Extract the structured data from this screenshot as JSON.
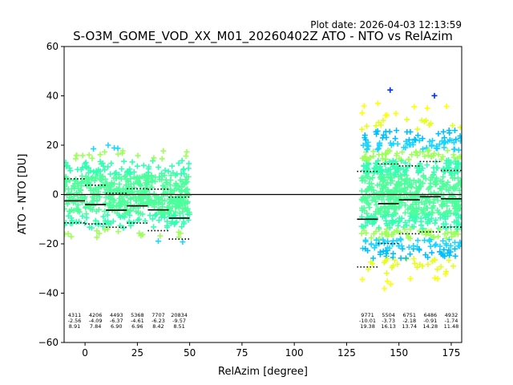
{
  "plot_date": "Plot date: 2026-04-03 12:13:59",
  "colors": {
    "axis": "#000000",
    "background": "#ffffff"
  },
  "chart_data": {
    "type": "scatter",
    "title": "S-O3M_GOME_VOD_XX_M01_20260402Z ATO - NTO vs RelAzim",
    "xlabel": "RelAzim [degree]",
    "ylabel": "ATO - NTO [DU]",
    "xlim": [
      -10,
      180
    ],
    "ylim": [
      -60,
      60
    ],
    "xticks": [
      "0",
      "25",
      "50",
      "75",
      "100",
      "125",
      "150",
      "175"
    ],
    "xtick_values": [
      0,
      25,
      50,
      75,
      100,
      125,
      150,
      175
    ],
    "yticks": [
      "−60",
      "−40",
      "−20",
      "0",
      "20",
      "40",
      "60"
    ],
    "ytick_values": [
      -60,
      -40,
      -20,
      0,
      20,
      40,
      60
    ],
    "reference_line": 0,
    "scatter_clusters": [
      {
        "x_range": [
          -10,
          50
        ],
        "y_center": 0,
        "y_spread": 26
      },
      {
        "x_range": [
          132,
          180
        ],
        "y_center": 0,
        "y_spread": 50
      }
    ],
    "bins": [
      {
        "x": -5,
        "count": "4311",
        "mean": "-2.56",
        "std": "8.91",
        "y_mean": -2.56,
        "y_std": 8.91
      },
      {
        "x": 5,
        "count": "4206",
        "mean": "-4.09",
        "std": "7.84",
        "y_mean": -4.09,
        "y_std": 7.84
      },
      {
        "x": 15,
        "count": "4493",
        "mean": "-6.37",
        "std": "6.90",
        "y_mean": -6.37,
        "y_std": 6.9
      },
      {
        "x": 25,
        "count": "5368",
        "mean": "-4.61",
        "std": "6.96",
        "y_mean": -4.61,
        "y_std": 6.96
      },
      {
        "x": 35,
        "count": "7707",
        "mean": "-6.23",
        "std": "8.42",
        "y_mean": -6.23,
        "y_std": 8.42
      },
      {
        "x": 45,
        "count": "20834",
        "mean": "-9.57",
        "std": "8.51",
        "y_mean": -9.57,
        "y_std": 8.51
      },
      {
        "x": 135,
        "count": "9771",
        "mean": "-10.01",
        "std": "19.38",
        "y_mean": -10.01,
        "y_std": 19.38
      },
      {
        "x": 145,
        "count": "5504",
        "mean": "-3.73",
        "std": "16.13",
        "y_mean": -3.73,
        "y_std": 16.13
      },
      {
        "x": 155,
        "count": "6751",
        "mean": "-2.18",
        "std": "13.74",
        "y_mean": -2.18,
        "y_std": 13.74
      },
      {
        "x": 165,
        "count": "6486",
        "mean": "-0.91",
        "std": "14.28",
        "y_mean": -0.91,
        "y_std": 14.28
      },
      {
        "x": 175,
        "count": "4932",
        "mean": "-1.74",
        "std": "11.48",
        "y_mean": -1.74,
        "y_std": 11.48
      }
    ]
  }
}
